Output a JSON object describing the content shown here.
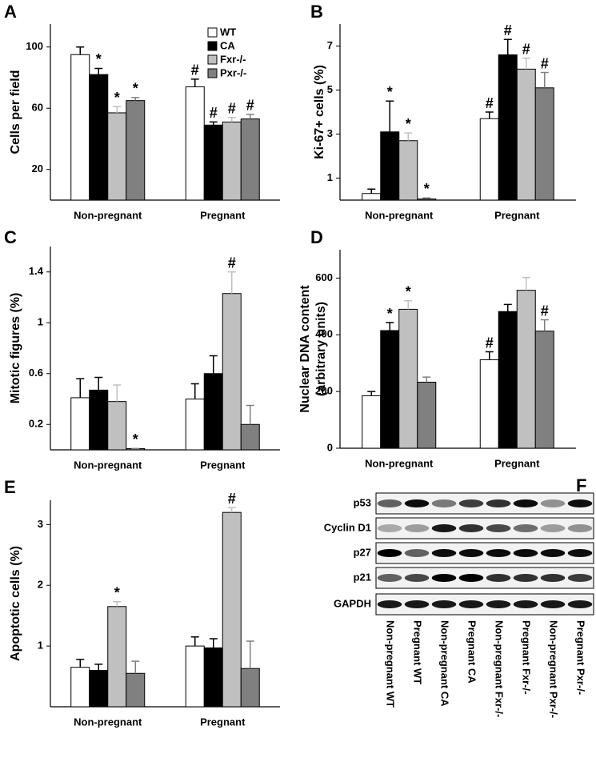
{
  "chart_data": [
    {
      "type": "bar",
      "label": "A",
      "ylabel": "Cells per field",
      "categories": [
        "Non-pregnant",
        "Pregnant"
      ],
      "legend": "upper right",
      "series": [
        {
          "name": "WT",
          "color": "#ffffff",
          "values": [
            95,
            74
          ],
          "errors": [
            5,
            5
          ],
          "annotations": [
            null,
            "#"
          ]
        },
        {
          "name": "CA",
          "color": "#000000",
          "values": [
            82,
            49
          ],
          "errors": [
            4,
            2
          ],
          "annotations": [
            "*",
            "#"
          ]
        },
        {
          "name": "Fxr-/-",
          "color": "#c0c0c0",
          "values": [
            57,
            51
          ],
          "errors": [
            4,
            3
          ],
          "annotations": [
            "*",
            "#"
          ]
        },
        {
          "name": "Pxr-/-",
          "color": "#808080",
          "values": [
            65,
            53
          ],
          "errors": [
            2,
            3
          ],
          "annotations": [
            "*",
            "#"
          ]
        }
      ],
      "ylim": [
        0,
        115
      ],
      "yticks": [
        20,
        60,
        100
      ]
    },
    {
      "type": "bar",
      "label": "B",
      "ylabel": "Ki-67+ cells (%)",
      "categories": [
        "Non-pregnant",
        "Pregnant"
      ],
      "series": [
        {
          "color": "#ffffff",
          "values": [
            0.3,
            3.7
          ],
          "errors": [
            0.2,
            0.3
          ],
          "annotations": [
            null,
            "#"
          ]
        },
        {
          "color": "#000000",
          "values": [
            3.1,
            6.6
          ],
          "errors": [
            1.4,
            0.7
          ],
          "annotations": [
            "*",
            "#"
          ]
        },
        {
          "color": "#c0c0c0",
          "values": [
            2.7,
            5.95
          ],
          "errors": [
            0.35,
            0.5
          ],
          "annotations": [
            "*",
            "#"
          ]
        },
        {
          "color": "#808080",
          "values": [
            0.05,
            5.1
          ],
          "errors": [
            0.05,
            0.7
          ],
          "annotations": [
            "*",
            "#"
          ]
        }
      ],
      "ylim": [
        0,
        8
      ],
      "yticks": [
        1,
        3,
        5,
        7
      ]
    },
    {
      "type": "bar",
      "label": "C",
      "ylabel": "Mitotic figures (%)",
      "categories": [
        "Non-pregnant",
        "Pregnant"
      ],
      "series": [
        {
          "color": "#ffffff",
          "values": [
            0.41,
            0.4
          ],
          "errors": [
            0.15,
            0.12
          ],
          "annotations": [
            null,
            null
          ]
        },
        {
          "color": "#000000",
          "values": [
            0.47,
            0.6
          ],
          "errors": [
            0.1,
            0.14
          ],
          "annotations": [
            null,
            null
          ]
        },
        {
          "color": "#c0c0c0",
          "values": [
            0.38,
            1.23
          ],
          "errors": [
            0.13,
            0.17
          ],
          "annotations": [
            null,
            "#"
          ]
        },
        {
          "color": "#808080",
          "values": [
            0.01,
            0.2
          ],
          "errors": [
            0,
            0.15
          ],
          "annotations": [
            "*",
            null
          ]
        }
      ],
      "ylim": [
        0,
        1.6
      ],
      "yticks": [
        0.2,
        0.6,
        1,
        1.4
      ]
    },
    {
      "type": "bar",
      "label": "D",
      "ylabel": "Nuclear DNA content",
      "ylabel2": "(arbitrary units)",
      "categories": [
        "Non-pregnant",
        "Pregnant"
      ],
      "series": [
        {
          "color": "#ffffff",
          "values": [
            185,
            312
          ],
          "errors": [
            15,
            28
          ],
          "annotations": [
            null,
            "#"
          ]
        },
        {
          "color": "#000000",
          "values": [
            415,
            482
          ],
          "errors": [
            28,
            25
          ],
          "annotations": [
            "*",
            null
          ]
        },
        {
          "color": "#c0c0c0",
          "values": [
            490,
            557
          ],
          "errors": [
            30,
            45
          ],
          "annotations": [
            "*",
            null
          ]
        },
        {
          "color": "#808080",
          "values": [
            233,
            413
          ],
          "errors": [
            18,
            40
          ],
          "annotations": [
            null,
            "#"
          ]
        }
      ],
      "ylim": [
        0,
        700
      ],
      "yticks": [
        0,
        200,
        400,
        600
      ]
    },
    {
      "type": "bar",
      "label": "E",
      "ylabel": "Apoptotic cells (%)",
      "categories": [
        "Non-pregnant",
        "Pregnant"
      ],
      "series": [
        {
          "color": "#ffffff",
          "values": [
            0.65,
            1.0
          ],
          "errors": [
            0.13,
            0.15
          ],
          "annotations": [
            null,
            null
          ]
        },
        {
          "color": "#000000",
          "values": [
            0.6,
            0.97
          ],
          "errors": [
            0.1,
            0.15
          ],
          "annotations": [
            null,
            null
          ]
        },
        {
          "color": "#c0c0c0",
          "values": [
            1.65,
            3.2
          ],
          "errors": [
            0.08,
            0.08
          ],
          "annotations": [
            "*",
            "#"
          ]
        },
        {
          "color": "#808080",
          "values": [
            0.55,
            0.63
          ],
          "errors": [
            0.2,
            0.45
          ],
          "annotations": [
            null,
            null
          ]
        }
      ],
      "ylim": [
        0,
        3.4
      ],
      "yticks": [
        1,
        2,
        3
      ]
    }
  ],
  "blot": {
    "label": "F",
    "rows": [
      "p53",
      "Cyclin D1",
      "p27",
      "p21",
      "GAPDH"
    ],
    "lanes": [
      "Non-pregnant WT",
      "Pregnant WT",
      "Non-pregnant CA",
      "Pregnant CA",
      "Non-pregnant Fxr-/-",
      "Pregnant Fxr-/-",
      "Non-pregnant Pxr-/-",
      "Pregnant Pxr-/-"
    ]
  }
}
